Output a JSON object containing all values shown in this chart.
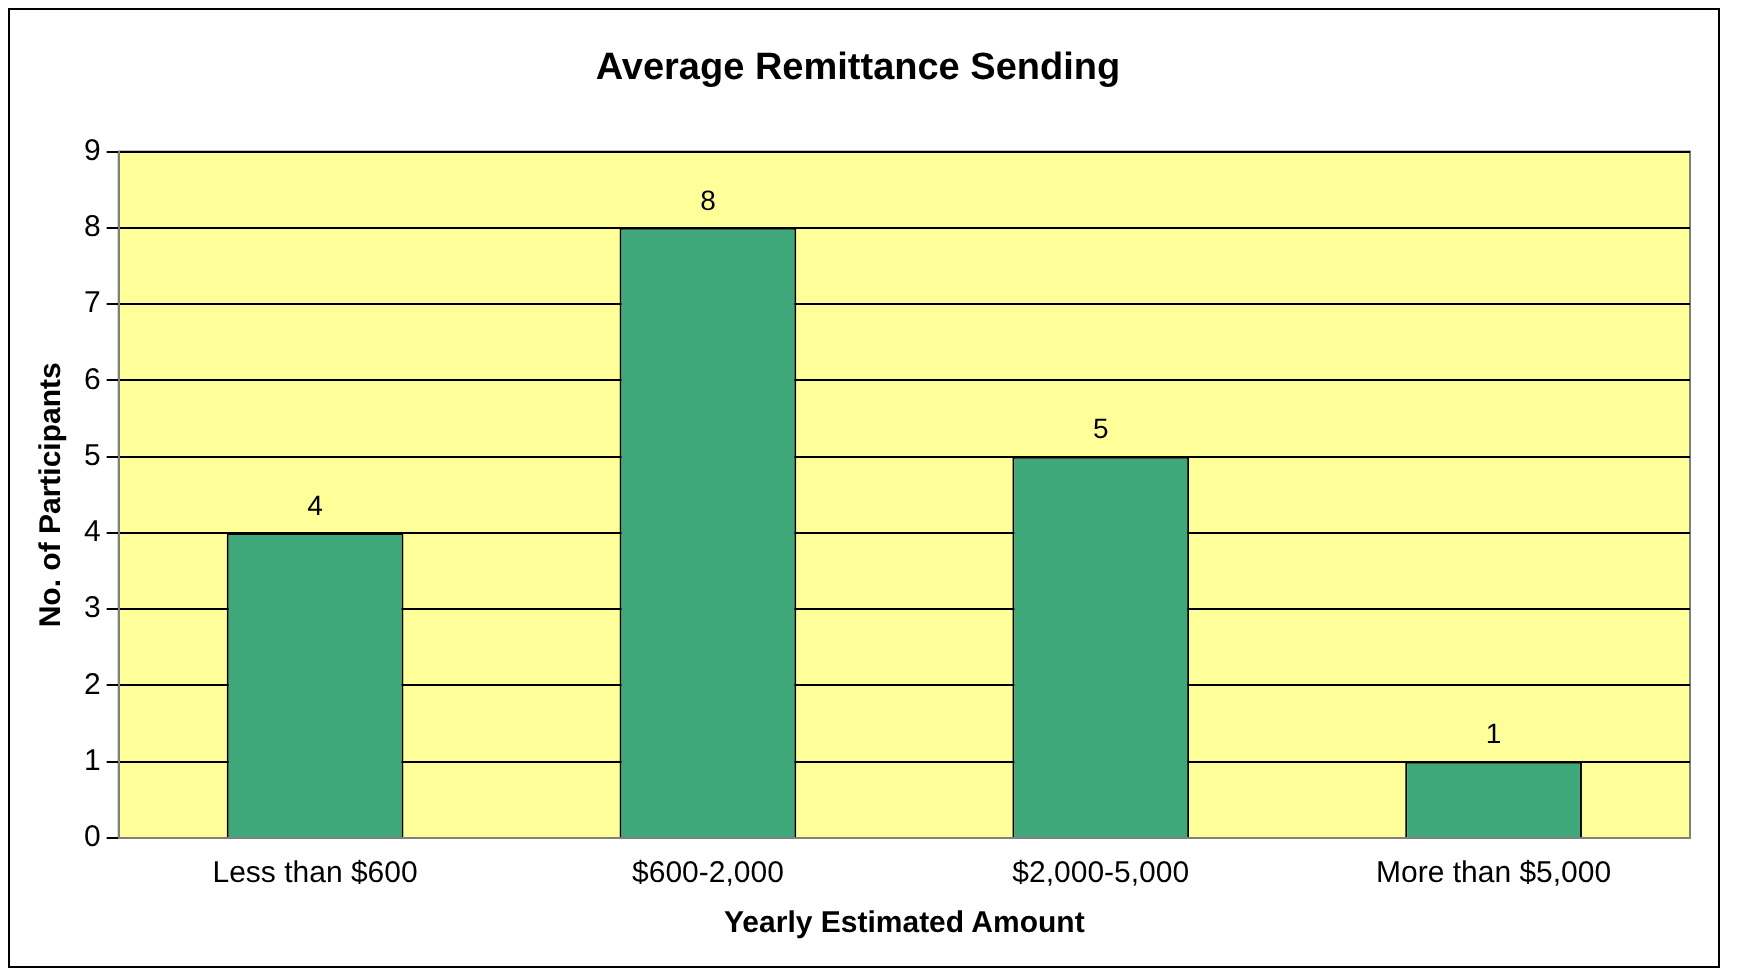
{
  "chart_data": {
    "type": "bar",
    "title": "Average Remittance Sending",
    "xlabel": "Yearly Estimated Amount",
    "ylabel": "No. of Participants",
    "categories": [
      "Less than $600",
      "$600-2,000",
      "$2,000-5,000",
      "More than $5,000"
    ],
    "values": [
      4,
      8,
      5,
      1
    ],
    "color": "#3fa87b",
    "ylim": [
      0,
      9
    ],
    "yticks": [
      0,
      1,
      2,
      3,
      4,
      5,
      6,
      7,
      8,
      9
    ],
    "grid": "y",
    "data_labels": true,
    "legend": false
  }
}
